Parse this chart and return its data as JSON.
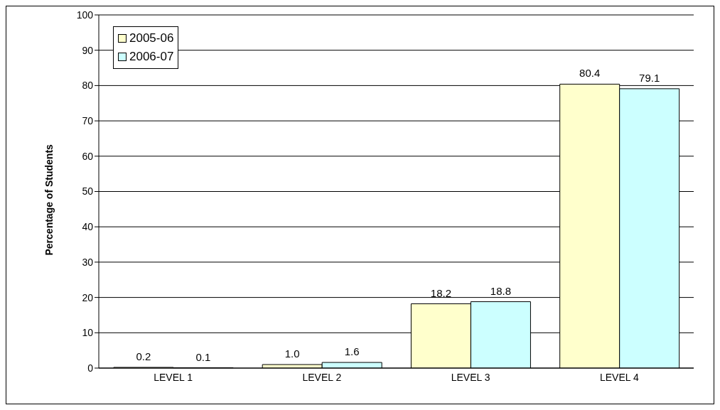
{
  "chart_data": {
    "type": "bar",
    "ylabel": "Percentage of Students",
    "categories": [
      "LEVEL 1",
      "LEVEL 2",
      "LEVEL 3",
      "LEVEL 4"
    ],
    "series": [
      {
        "name": "2005-06",
        "color": "#ffffcc",
        "values": [
          0.2,
          1.0,
          18.2,
          80.4
        ],
        "value_labels": [
          "0.2",
          "1.0",
          "18.2",
          "80.4"
        ]
      },
      {
        "name": "2006-07",
        "color": "#ccffff",
        "values": [
          0.1,
          1.6,
          18.8,
          79.1
        ],
        "value_labels": [
          "0.1",
          "1.6",
          "18.8",
          "79.1"
        ]
      }
    ],
    "ylim": [
      0,
      100
    ],
    "yticks": [
      0,
      10,
      20,
      30,
      40,
      50,
      60,
      70,
      80,
      90,
      100
    ],
    "grid": "y",
    "legend": "top left"
  }
}
